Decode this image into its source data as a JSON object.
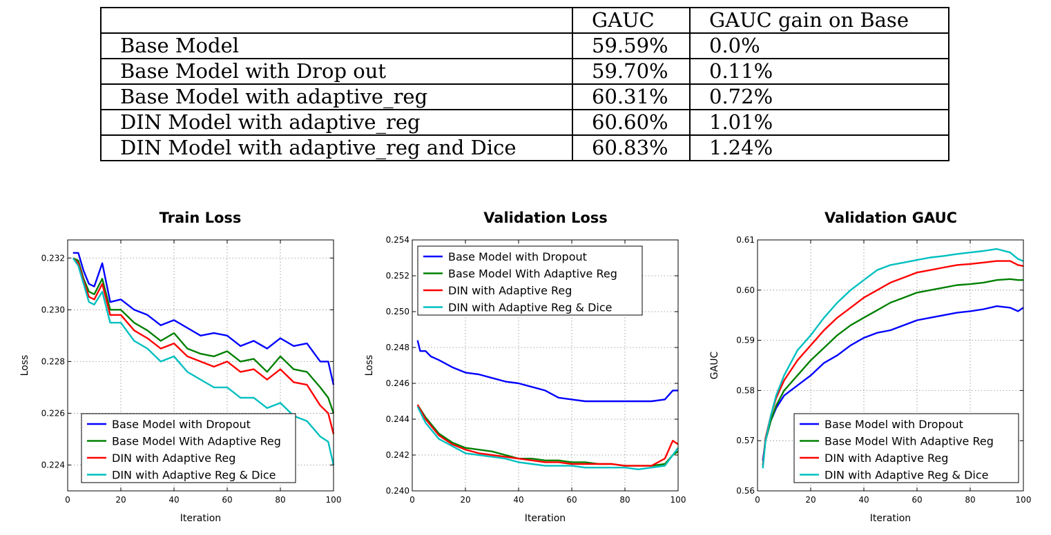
{
  "table": {
    "headers": [
      "",
      "GAUC",
      "GAUC gain on Base"
    ],
    "rows": [
      [
        "Base Model",
        "59.59%",
        "0.0%"
      ],
      [
        "Base Model with Drop out",
        "59.70%",
        "0.11%"
      ],
      [
        "Base Model with adaptive_reg",
        "60.31%",
        "0.72%"
      ],
      [
        "DIN Model with adaptive_reg",
        "60.60%",
        "1.01%"
      ],
      [
        "DIN Model with adaptive_reg and Dice",
        "60.83%",
        "1.24%"
      ]
    ]
  },
  "colors": {
    "blue": "#0000ff",
    "green": "#008000",
    "red": "#ff0000",
    "cyan": "#00bfbf"
  },
  "chart_data": [
    {
      "type": "line",
      "title": "Train Loss",
      "xlabel": "Iteration",
      "ylabel": "Loss",
      "xlim": [
        0,
        100
      ],
      "ylim": [
        0.223,
        0.2327
      ],
      "xticks": [
        0,
        20,
        40,
        60,
        80,
        100
      ],
      "yticks": [
        0.224,
        0.226,
        0.228,
        0.23,
        0.232
      ],
      "grid": true,
      "legend": "bottom-left",
      "series": [
        {
          "name": "Base Model with Dropout",
          "color": "#0000ff",
          "x": [
            2,
            4,
            6,
            8,
            10,
            13,
            16,
            20,
            25,
            30,
            35,
            40,
            45,
            50,
            55,
            60,
            65,
            70,
            75,
            80,
            85,
            90,
            95,
            98,
            100
          ],
          "y": [
            0.2322,
            0.2322,
            0.2315,
            0.231,
            0.2309,
            0.2318,
            0.2303,
            0.2304,
            0.23,
            0.2298,
            0.2294,
            0.2296,
            0.2293,
            0.229,
            0.2291,
            0.229,
            0.2286,
            0.2288,
            0.2285,
            0.2289,
            0.2286,
            0.2287,
            0.228,
            0.228,
            0.2271
          ]
        },
        {
          "name": "Base Model With Adaptive Reg",
          "color": "#008000",
          "x": [
            2,
            4,
            6,
            8,
            10,
            13,
            16,
            20,
            25,
            30,
            35,
            40,
            45,
            50,
            55,
            60,
            65,
            70,
            75,
            80,
            85,
            90,
            95,
            98,
            100
          ],
          "y": [
            0.232,
            0.2319,
            0.2312,
            0.2307,
            0.2306,
            0.2312,
            0.23,
            0.23,
            0.2295,
            0.2292,
            0.2288,
            0.2291,
            0.2285,
            0.2283,
            0.2282,
            0.2284,
            0.228,
            0.2281,
            0.2276,
            0.2282,
            0.2277,
            0.2276,
            0.227,
            0.2266,
            0.226
          ]
        },
        {
          "name": "DIN with Adaptive Reg",
          "color": "#ff0000",
          "x": [
            2,
            4,
            6,
            8,
            10,
            13,
            16,
            20,
            25,
            30,
            35,
            40,
            45,
            50,
            55,
            60,
            65,
            70,
            75,
            80,
            85,
            90,
            95,
            98,
            100
          ],
          "y": [
            0.232,
            0.2318,
            0.2311,
            0.2305,
            0.2304,
            0.231,
            0.2298,
            0.2298,
            0.2292,
            0.2289,
            0.2285,
            0.2287,
            0.2282,
            0.228,
            0.2278,
            0.228,
            0.2276,
            0.2277,
            0.2273,
            0.2277,
            0.2272,
            0.2271,
            0.2263,
            0.226,
            0.2252
          ]
        },
        {
          "name": "DIN with Adaptive Reg & Dice",
          "color": "#00bfbf",
          "x": [
            2,
            4,
            6,
            8,
            10,
            13,
            16,
            20,
            25,
            30,
            35,
            40,
            45,
            50,
            55,
            60,
            65,
            70,
            75,
            80,
            85,
            90,
            95,
            98,
            100
          ],
          "y": [
            0.232,
            0.2317,
            0.231,
            0.2303,
            0.2302,
            0.2307,
            0.2295,
            0.2295,
            0.2288,
            0.2285,
            0.228,
            0.2282,
            0.2276,
            0.2273,
            0.227,
            0.227,
            0.2266,
            0.2266,
            0.2262,
            0.2264,
            0.2259,
            0.2257,
            0.2251,
            0.2249,
            0.224
          ]
        }
      ]
    },
    {
      "type": "line",
      "title": "Validation Loss",
      "xlabel": "Iteration",
      "ylabel": "Loss",
      "xlim": [
        0,
        100
      ],
      "ylim": [
        0.24,
        0.254
      ],
      "xticks": [
        0,
        20,
        40,
        60,
        80,
        100
      ],
      "yticks": [
        0.24,
        0.242,
        0.244,
        0.246,
        0.248,
        0.25,
        0.252,
        0.254
      ],
      "grid": true,
      "legend": "top-left",
      "series": [
        {
          "name": "Base Model with Dropout",
          "color": "#0000ff",
          "x": [
            2,
            3,
            5,
            7,
            10,
            15,
            20,
            25,
            30,
            35,
            40,
            45,
            50,
            55,
            60,
            65,
            70,
            75,
            80,
            85,
            90,
            95,
            98,
            100
          ],
          "y": [
            0.2484,
            0.2478,
            0.2478,
            0.2475,
            0.2473,
            0.2469,
            0.2466,
            0.2465,
            0.2463,
            0.2461,
            0.246,
            0.2458,
            0.2456,
            0.2452,
            0.2451,
            0.245,
            0.245,
            0.245,
            0.245,
            0.245,
            0.245,
            0.2451,
            0.2456,
            0.2456
          ]
        },
        {
          "name": "Base Model With Adaptive Reg",
          "color": "#008000",
          "x": [
            2,
            5,
            10,
            15,
            20,
            25,
            30,
            35,
            40,
            45,
            50,
            55,
            60,
            65,
            70,
            75,
            80,
            85,
            90,
            95,
            98,
            100
          ],
          "y": [
            0.2448,
            0.2441,
            0.2432,
            0.2427,
            0.2424,
            0.2423,
            0.2422,
            0.242,
            0.2418,
            0.2418,
            0.2417,
            0.2417,
            0.2416,
            0.2416,
            0.2415,
            0.2415,
            0.2414,
            0.2414,
            0.2414,
            0.2415,
            0.242,
            0.2422
          ]
        },
        {
          "name": "DIN with Adaptive Reg",
          "color": "#ff0000",
          "x": [
            2,
            5,
            10,
            15,
            20,
            25,
            30,
            35,
            40,
            45,
            50,
            55,
            60,
            65,
            70,
            75,
            80,
            85,
            90,
            95,
            98,
            100
          ],
          "y": [
            0.2448,
            0.244,
            0.2431,
            0.2426,
            0.2423,
            0.2421,
            0.242,
            0.2419,
            0.2418,
            0.2417,
            0.2416,
            0.2416,
            0.2415,
            0.2415,
            0.2415,
            0.2415,
            0.2414,
            0.2414,
            0.2414,
            0.2418,
            0.2428,
            0.2426
          ]
        },
        {
          "name": "DIN with Adaptive Reg & Dice",
          "color": "#00bfbf",
          "x": [
            2,
            5,
            10,
            15,
            20,
            25,
            30,
            35,
            40,
            45,
            50,
            55,
            60,
            65,
            70,
            75,
            80,
            85,
            90,
            95,
            98,
            100
          ],
          "y": [
            0.2447,
            0.2438,
            0.2429,
            0.2425,
            0.2421,
            0.242,
            0.2419,
            0.2418,
            0.2416,
            0.2415,
            0.2414,
            0.2414,
            0.2414,
            0.2413,
            0.2413,
            0.2413,
            0.2413,
            0.2412,
            0.2413,
            0.2414,
            0.242,
            0.2424
          ]
        }
      ]
    },
    {
      "type": "line",
      "title": "Validation GAUC",
      "xlabel": "Iteration",
      "ylabel": "GAUC",
      "xlim": [
        0,
        100
      ],
      "ylim": [
        0.56,
        0.61
      ],
      "xticks": [
        0,
        20,
        40,
        60,
        80,
        100
      ],
      "yticks": [
        0.56,
        0.57,
        0.58,
        0.59,
        0.6,
        0.61
      ],
      "grid": true,
      "legend": "bottom-right",
      "series": [
        {
          "name": "Base Model with Dropout",
          "color": "#0000ff",
          "x": [
            2,
            3,
            5,
            7,
            10,
            15,
            20,
            25,
            30,
            35,
            40,
            45,
            50,
            55,
            60,
            65,
            70,
            75,
            80,
            85,
            90,
            95,
            98,
            100
          ],
          "y": [
            0.566,
            0.57,
            0.574,
            0.5765,
            0.579,
            0.581,
            0.583,
            0.5855,
            0.587,
            0.589,
            0.5905,
            0.5915,
            0.592,
            0.593,
            0.594,
            0.5945,
            0.595,
            0.5955,
            0.5958,
            0.5962,
            0.5968,
            0.5965,
            0.5958,
            0.5965
          ]
        },
        {
          "name": "Base Model With Adaptive Reg",
          "color": "#008000",
          "x": [
            2,
            3,
            5,
            7,
            10,
            15,
            20,
            25,
            30,
            35,
            40,
            45,
            50,
            55,
            60,
            65,
            70,
            75,
            80,
            85,
            90,
            95,
            98,
            100
          ],
          "y": [
            0.565,
            0.57,
            0.574,
            0.577,
            0.58,
            0.583,
            0.586,
            0.5885,
            0.591,
            0.593,
            0.5945,
            0.596,
            0.5975,
            0.5985,
            0.5995,
            0.6,
            0.6005,
            0.601,
            0.6012,
            0.6015,
            0.602,
            0.6022,
            0.602,
            0.602
          ]
        },
        {
          "name": "DIN with Adaptive Reg",
          "color": "#ff0000",
          "x": [
            2,
            3,
            5,
            7,
            10,
            15,
            20,
            25,
            30,
            35,
            40,
            45,
            50,
            55,
            60,
            65,
            70,
            75,
            80,
            85,
            90,
            95,
            98,
            100
          ],
          "y": [
            0.565,
            0.5705,
            0.575,
            0.5785,
            0.582,
            0.586,
            0.589,
            0.592,
            0.5945,
            0.5965,
            0.5985,
            0.6,
            0.6015,
            0.6025,
            0.6035,
            0.604,
            0.6045,
            0.605,
            0.6052,
            0.6055,
            0.6058,
            0.6058,
            0.605,
            0.6048
          ]
        },
        {
          "name": "DIN with Adaptive Reg & Dice",
          "color": "#00bfbf",
          "x": [
            2,
            3,
            5,
            7,
            10,
            15,
            20,
            25,
            30,
            35,
            40,
            45,
            50,
            55,
            60,
            65,
            70,
            75,
            80,
            85,
            90,
            95,
            98,
            100
          ],
          "y": [
            0.5645,
            0.57,
            0.575,
            0.579,
            0.583,
            0.588,
            0.591,
            0.5945,
            0.5975,
            0.6,
            0.602,
            0.604,
            0.605,
            0.6055,
            0.606,
            0.6065,
            0.6068,
            0.6072,
            0.6075,
            0.6078,
            0.6082,
            0.6075,
            0.6062,
            0.6058
          ]
        }
      ]
    }
  ]
}
